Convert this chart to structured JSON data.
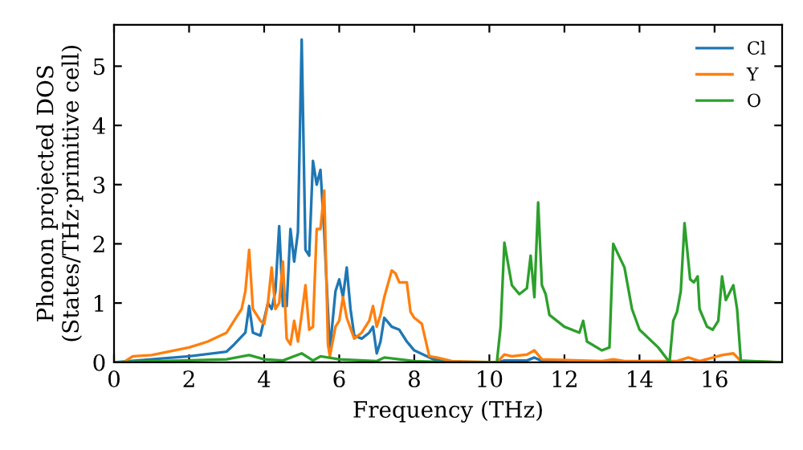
{
  "chart_data": {
    "type": "line",
    "xlabel": "Frequency (THz)",
    "ylabel": "Phonon projected DOS\n(States/THz·primitive cell)",
    "xlim": [
      0,
      17.8
    ],
    "ylim": [
      0,
      5.7
    ],
    "xticks": [
      0,
      2,
      4,
      6,
      8,
      10,
      12,
      14,
      16
    ],
    "yticks": [
      0,
      1,
      2,
      3,
      4,
      5
    ],
    "grid": false,
    "legend": "top right",
    "marker": "none",
    "line_style": "solid",
    "series": [
      {
        "name": "Cl",
        "color": "#1f77b4",
        "x": [
          0,
          1,
          2,
          3.0,
          3.2,
          3.5,
          3.6,
          3.7,
          3.9,
          4.1,
          4.2,
          4.3,
          4.4,
          4.5,
          4.6,
          4.7,
          4.8,
          4.9,
          5.0,
          5.1,
          5.2,
          5.3,
          5.4,
          5.5,
          5.6,
          5.75,
          5.9,
          6.0,
          6.1,
          6.2,
          6.3,
          6.4,
          6.6,
          6.8,
          6.9,
          7.0,
          7.1,
          7.2,
          7.4,
          7.6,
          7.8,
          8.0,
          8.5,
          9.0,
          10.2,
          10.4,
          11.0,
          11.2,
          11.4,
          12.0,
          17.8
        ],
        "values": [
          0,
          0.05,
          0.1,
          0.18,
          0.3,
          0.5,
          0.95,
          0.5,
          0.45,
          1.0,
          0.9,
          1.2,
          2.3,
          0.95,
          0.95,
          2.25,
          1.7,
          2.2,
          5.45,
          1.9,
          1.8,
          3.4,
          3.0,
          3.25,
          2.2,
          0.2,
          1.2,
          1.4,
          1.1,
          1.6,
          0.9,
          0.45,
          0.4,
          0.5,
          0.6,
          0.15,
          0.35,
          0.75,
          0.6,
          0.55,
          0.35,
          0.2,
          0.05,
          0.0,
          0.0,
          0.03,
          0.03,
          0.08,
          0.02,
          0.0,
          0.0
        ]
      },
      {
        "name": "Y",
        "color": "#ff7f0e",
        "x": [
          0.25,
          0.5,
          1,
          2,
          2.5,
          3.0,
          3.2,
          3.4,
          3.5,
          3.6,
          3.7,
          3.9,
          4.0,
          4.1,
          4.2,
          4.3,
          4.4,
          4.5,
          4.6,
          4.7,
          4.8,
          4.9,
          5.0,
          5.1,
          5.2,
          5.3,
          5.4,
          5.5,
          5.6,
          5.7,
          5.75,
          5.9,
          6.0,
          6.1,
          6.2,
          6.4,
          6.6,
          6.8,
          6.9,
          7.0,
          7.1,
          7.2,
          7.4,
          7.5,
          7.6,
          7.8,
          7.9,
          8.0,
          8.2,
          8.4,
          8.6,
          9.0,
          10.2,
          10.4,
          10.6,
          11.0,
          11.2,
          11.4,
          13.0,
          13.3,
          13.6,
          15.0,
          15.3,
          15.6,
          16.2,
          16.5,
          16.7,
          17.8
        ],
        "values": [
          0,
          0.1,
          0.12,
          0.25,
          0.35,
          0.5,
          0.7,
          0.9,
          1.2,
          1.9,
          0.9,
          0.7,
          0.65,
          1.0,
          1.6,
          0.9,
          1.0,
          1.7,
          0.4,
          0.3,
          0.7,
          0.35,
          0.8,
          1.3,
          0.55,
          0.6,
          2.25,
          2.25,
          2.9,
          0.3,
          0.1,
          0.6,
          0.7,
          1.1,
          0.75,
          0.4,
          0.5,
          0.7,
          0.95,
          0.6,
          0.8,
          1.1,
          1.55,
          1.5,
          1.35,
          1.35,
          0.85,
          0.75,
          0.65,
          0.1,
          0.08,
          0.02,
          0.0,
          0.13,
          0.1,
          0.13,
          0.2,
          0.05,
          0.02,
          0.05,
          0.02,
          0.02,
          0.08,
          0.02,
          0.12,
          0.15,
          0.02,
          0.0
        ]
      },
      {
        "name": "O",
        "color": "#2ca02c",
        "x": [
          0,
          3.0,
          3.6,
          4.0,
          4.5,
          5.0,
          5.3,
          5.5,
          6.0,
          7.0,
          7.2,
          8.0,
          9.0,
          10.2,
          10.3,
          10.4,
          10.6,
          10.8,
          11.0,
          11.1,
          11.2,
          11.3,
          11.4,
          11.5,
          11.6,
          12.0,
          12.4,
          12.5,
          12.6,
          13.0,
          13.2,
          13.3,
          13.6,
          13.8,
          14.0,
          14.5,
          14.8,
          14.9,
          15.0,
          15.1,
          15.2,
          15.35,
          15.45,
          15.55,
          15.6,
          15.8,
          15.95,
          16.1,
          16.2,
          16.3,
          16.5,
          16.6,
          16.7,
          17.0,
          17.8
        ],
        "values": [
          0,
          0.05,
          0.12,
          0.05,
          0.03,
          0.15,
          0.03,
          0.1,
          0.05,
          0.02,
          0.08,
          0.02,
          0.0,
          0.0,
          0.6,
          2.02,
          1.3,
          1.15,
          1.25,
          1.8,
          1.1,
          2.7,
          1.3,
          1.15,
          0.8,
          0.6,
          0.5,
          0.7,
          0.35,
          0.2,
          0.25,
          2.0,
          1.6,
          0.9,
          0.55,
          0.25,
          0.0,
          0.7,
          0.85,
          1.2,
          2.35,
          1.4,
          1.35,
          1.45,
          0.9,
          0.6,
          0.55,
          0.7,
          1.45,
          1.05,
          1.3,
          0.9,
          0.03,
          0.02,
          0.0
        ]
      }
    ]
  }
}
